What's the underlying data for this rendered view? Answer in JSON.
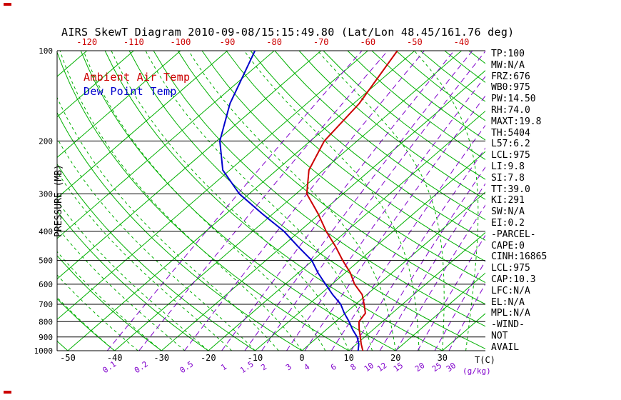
{
  "title": "AIRS SkewT Diagram 2010-09-08/15:15:49.80 (Lat/Lon 48.45/161.76 deg)",
  "legend": {
    "temp_label": "Ambient Air Temp",
    "dewpoint_label": "Dew Point Temp"
  },
  "colors": {
    "line_green": "#00b000",
    "mixing_purple": "#8000cc",
    "temp_red": "#cc0000",
    "dewpoint_blue": "#0000cc",
    "axis_black": "#000000"
  },
  "axes": {
    "pressure_label": "PRESSURE (MB)",
    "pressure_ticks": [
      100,
      200,
      300,
      400,
      500,
      600,
      700,
      800,
      900,
      1000
    ],
    "top_temp_ticks": [
      -120,
      -110,
      -100,
      -90,
      -80,
      -70,
      -60,
      -50,
      -40
    ],
    "bottom_temp_ticks": [
      -50,
      -40,
      -30,
      -20,
      -10,
      0,
      10,
      20,
      30
    ],
    "temp_unit_label": "T(C)",
    "mixing_unit_label": "(g/kg)",
    "mixing_ratio_ticks": [
      0.1,
      0.2,
      0.5,
      1,
      1.5,
      2,
      3,
      4,
      6,
      8,
      10,
      12,
      15,
      20,
      25,
      30
    ]
  },
  "stats_panel": [
    "TP:100",
    "MW:N/A",
    "FRZ:676",
    "WB0:975",
    "PW:14.50",
    "RH:74.0",
    "MAXT:19.8",
    "TH:5404",
    "L57:6.2",
    "LCL:975",
    "LI:9.8",
    "SI:7.8",
    "TT:39.0",
    "KI:291",
    "SW:N/A",
    "EI:0.2",
    "-PARCEL-",
    "CAPE:0",
    "CINH:16865",
    "LCL:975",
    "CAP:10.3",
    "LFC:N/A",
    "EL:N/A",
    "MPL:N/A",
    "-WIND-",
    "NOT",
    "AVAIL"
  ],
  "chart_data": {
    "type": "line",
    "title": "AIRS SkewT Diagram 2010-09-08/15:15:49.80 (Lat/Lon 48.45/161.76 deg)",
    "xlabel": "T(C)",
    "ylabel": "PRESSURE (MB)",
    "y_scale": "log",
    "ylim": [
      1000,
      100
    ],
    "x_axis_surface_range_c": [
      -50,
      30
    ],
    "skewed_isotherms": true,
    "isotherm_step_c": 10,
    "dry_adiabat_step_c": 10,
    "moist_adiabat_step_c": 5,
    "mixing_ratio_lines_g_kg": [
      0.1,
      0.2,
      0.5,
      1,
      1.5,
      2,
      3,
      4,
      6,
      8,
      10,
      12,
      15,
      20,
      25,
      30
    ],
    "series": [
      {
        "name": "Ambient Air Temp",
        "color": "#cc0000",
        "pressure_mb": [
          1000,
          950,
          900,
          850,
          800,
          750,
          700,
          650,
          600,
          550,
          500,
          450,
          400,
          350,
          300,
          250,
          200,
          150,
          100
        ],
        "temp_c": [
          13,
          11,
          9.1,
          7,
          5,
          4.3,
          1.8,
          -1,
          -5.2,
          -8.9,
          -13.6,
          -18.5,
          -24.3,
          -30.3,
          -37.7,
          -43.1,
          -47,
          -48.8,
          -53.7
        ]
      },
      {
        "name": "Dew Point Temp",
        "color": "#0000cc",
        "pressure_mb": [
          1000,
          950,
          900,
          850,
          800,
          750,
          700,
          650,
          600,
          550,
          500,
          450,
          400,
          350,
          300,
          250,
          200,
          150,
          100
        ],
        "temp_c": [
          12,
          10.5,
          8.4,
          5.6,
          2.9,
          -0.2,
          -3.2,
          -7.3,
          -11.4,
          -15.8,
          -20.2,
          -26.5,
          -33.3,
          -42.2,
          -52.1,
          -61.5,
          -69.3,
          -76.4,
          -84.1
        ]
      }
    ]
  }
}
